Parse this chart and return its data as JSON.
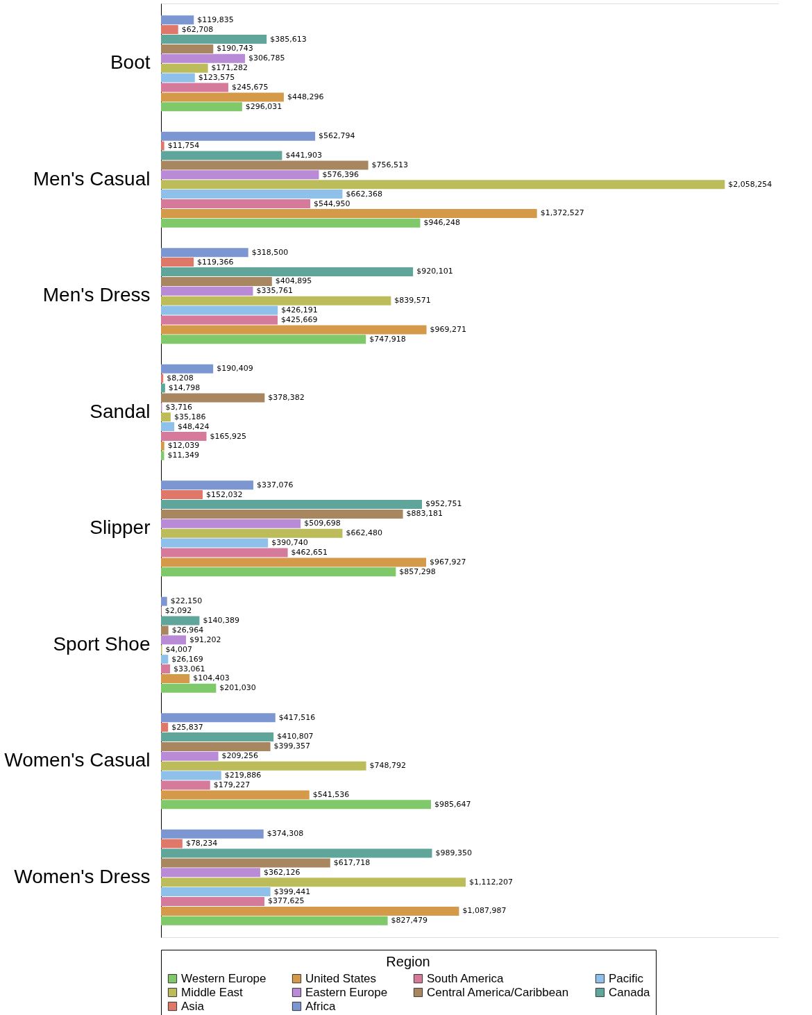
{
  "chart_data": {
    "type": "bar",
    "orientation": "horizontal",
    "legend_title": "Region",
    "legend": "bottom",
    "grid": false,
    "tick_labels": "y",
    "categories": [
      "Boot",
      "Men's Casual",
      "Men's Dress",
      "Sandal",
      "Slipper",
      "Sport Shoe",
      "Women's Casual",
      "Women's Dress"
    ],
    "xlim": [
      0,
      2255000
    ],
    "series": [
      {
        "name": "Africa",
        "color": "#7b96d0",
        "values": [
          119835,
          562794,
          318500,
          190409,
          337076,
          22150,
          417516,
          374308
        ],
        "value_labels": [
          "$119,835",
          "$562,794",
          "$318,500",
          "$190,409",
          "$337,076",
          "$22,150",
          "$417,516",
          "$374,308"
        ]
      },
      {
        "name": "Asia",
        "color": "#e0786a",
        "values": [
          62708,
          11754,
          119366,
          8208,
          152032,
          2092,
          25837,
          78234
        ],
        "value_labels": [
          "$62,708",
          "$11,754",
          "$119,366",
          "$8,208",
          "$152,032",
          "$2,092",
          "$25,837",
          "$78,234"
        ]
      },
      {
        "name": "Canada",
        "color": "#5fa59a",
        "values": [
          385613,
          441903,
          920101,
          14798,
          952751,
          140389,
          410807,
          989350
        ],
        "value_labels": [
          "$385,613",
          "$441,903",
          "$920,101",
          "$14,798",
          "$952,751",
          "$140,389",
          "$410,807",
          "$989,350"
        ]
      },
      {
        "name": "Central America/Caribbean",
        "color": "#a88660",
        "values": [
          190743,
          756513,
          404895,
          378382,
          883181,
          26964,
          399357,
          617718
        ],
        "value_labels": [
          "$190,743",
          "$756,513",
          "$404,895",
          "$378,382",
          "$883,181",
          "$26,964",
          "$399,357",
          "$617,718"
        ]
      },
      {
        "name": "Eastern Europe",
        "color": "#b98ad6",
        "values": [
          306785,
          576396,
          335761,
          3716,
          509698,
          91202,
          209256,
          362126
        ],
        "value_labels": [
          "$306,785",
          "$576,396",
          "$335,761",
          "$3,716",
          "$509,698",
          "$91,202",
          "$209,256",
          "$362,126"
        ]
      },
      {
        "name": "Middle East",
        "color": "#bcbc5a",
        "values": [
          171282,
          2058254,
          839571,
          35186,
          662480,
          4007,
          748792,
          1112207
        ],
        "value_labels": [
          "$171,282",
          "$2,058,254",
          "$839,571",
          "$35,186",
          "$662,480",
          "$4,007",
          "$748,792",
          "$1,112,207"
        ]
      },
      {
        "name": "Pacific",
        "color": "#8fc0ea",
        "values": [
          123575,
          662368,
          426191,
          48424,
          390740,
          26169,
          219886,
          399441
        ],
        "value_labels": [
          "$123,575",
          "$662,368",
          "$426,191",
          "$48,424",
          "$390,740",
          "$26,169",
          "$219,886",
          "$399,441"
        ]
      },
      {
        "name": "South America",
        "color": "#d67a9c",
        "values": [
          245675,
          544950,
          425669,
          165925,
          462651,
          33061,
          179227,
          377625
        ],
        "value_labels": [
          "$245,675",
          "$544,950",
          "$425,669",
          "$165,925",
          "$462,651",
          "$33,061",
          "$179,227",
          "$377,625"
        ]
      },
      {
        "name": "United States",
        "color": "#d49a4a",
        "values": [
          448296,
          1372527,
          969271,
          12039,
          967927,
          104403,
          541536,
          1087987
        ],
        "value_labels": [
          "$448,296",
          "$1,372,527",
          "$969,271",
          "$12,039",
          "$967,927",
          "$104,403",
          "$541,536",
          "$1,087,987"
        ]
      },
      {
        "name": "Western Europe",
        "color": "#7fc96a",
        "values": [
          296031,
          946248,
          747918,
          11349,
          857298,
          201030,
          985647,
          827479
        ],
        "value_labels": [
          "$296,031",
          "$946,248",
          "$747,918",
          "$11,349",
          "$857,298",
          "$201,030",
          "$985,647",
          "$827,479"
        ]
      }
    ]
  }
}
